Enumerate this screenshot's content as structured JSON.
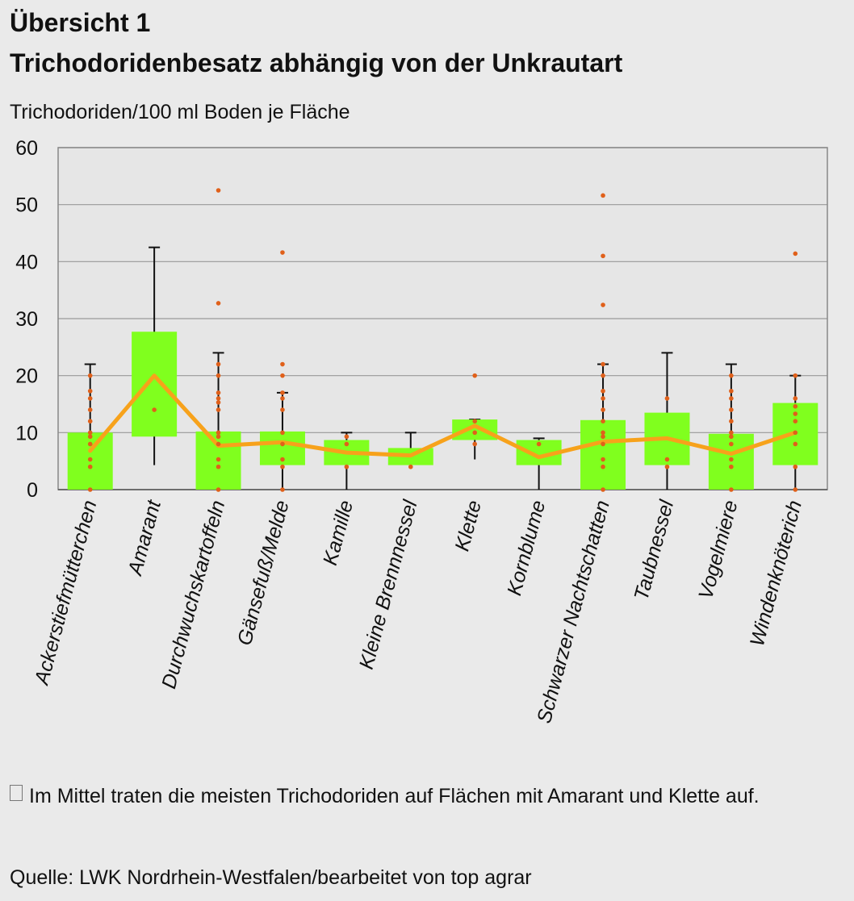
{
  "header": {
    "title_line1": "Übersicht 1",
    "title_line2": "Trichodoridenbesatz abhängig von der Unkrautart"
  },
  "chart_data": {
    "type": "boxplot",
    "ylabel": "Trichodoriden/100  ml Boden je Fläche",
    "ylim": [
      0,
      60
    ],
    "yticks": [
      0,
      10,
      20,
      30,
      40,
      50,
      60
    ],
    "grid": true,
    "colors": {
      "box": "#80ff1e",
      "mean_line": "#f7a21b",
      "points": "#e0601a",
      "whisker": "#111111",
      "grid": "#999999",
      "plot_bg": "#e6e6e6"
    },
    "categories": [
      "Ackerstiefmütterchen",
      "Amarant",
      "Durchwuchskartoffeln",
      "Gänsefuß/Melde",
      "Kamille",
      "Kleine Brennnessel",
      "Klette",
      "Kornblume",
      "Schwarzer Nachtschatten",
      "Taubnessel",
      "Vogelmiere",
      "Windenknöterich"
    ],
    "boxes": [
      {
        "whisker_low": 0,
        "q1": 0,
        "q3": 10,
        "whisker_high": 22
      },
      {
        "whisker_low": 4.3,
        "q1": 9.3,
        "q3": 27.7,
        "whisker_high": 42.5
      },
      {
        "whisker_low": 0,
        "q1": 0,
        "q3": 10.2,
        "whisker_high": 24
      },
      {
        "whisker_low": 0,
        "q1": 4.3,
        "q3": 10.2,
        "whisker_high": 17
      },
      {
        "whisker_low": 0,
        "q1": 4.3,
        "q3": 8.7,
        "whisker_high": 10
      },
      {
        "whisker_low": 4.3,
        "q1": 4.3,
        "q3": 7.3,
        "whisker_high": 10
      },
      {
        "whisker_low": 5.3,
        "q1": 8.7,
        "q3": 12.3,
        "whisker_high": 12.3
      },
      {
        "whisker_low": 0,
        "q1": 4.3,
        "q3": 8.7,
        "whisker_high": 9
      },
      {
        "whisker_low": 0,
        "q1": 0,
        "q3": 12.2,
        "whisker_high": 22
      },
      {
        "whisker_low": 0,
        "q1": 4.3,
        "q3": 13.5,
        "whisker_high": 24
      },
      {
        "whisker_low": 0,
        "q1": 0,
        "q3": 9.8,
        "whisker_high": 22
      },
      {
        "whisker_low": 0,
        "q1": 4.3,
        "q3": 15.2,
        "whisker_high": 20
      }
    ],
    "means": [
      6.8,
      20,
      7.7,
      8.3,
      6.5,
      6,
      11.2,
      5.7,
      8.4,
      9,
      6.3,
      10
    ],
    "points": [
      [
        0,
        4,
        5.3,
        8,
        9.3,
        10,
        12,
        14,
        16,
        17.3,
        20
      ],
      [
        14
      ],
      [
        0,
        4,
        5.3,
        8,
        9.3,
        10,
        14,
        15.3,
        16,
        17,
        20,
        22,
        32.7,
        52.5
      ],
      [
        0,
        4,
        5.3,
        8,
        10,
        14,
        16,
        17,
        20,
        22,
        41.6
      ],
      [
        4,
        8,
        9.3
      ],
      [
        4
      ],
      [
        8,
        10,
        12,
        20
      ],
      [
        8
      ],
      [
        0,
        4,
        5.3,
        8,
        9.3,
        10,
        12,
        14,
        16,
        17.3,
        20,
        22,
        32.4,
        41,
        51.6
      ],
      [
        4,
        5.3,
        16
      ],
      [
        0,
        4,
        5.3,
        8,
        9.3,
        10,
        12,
        14,
        16,
        17.3,
        20
      ],
      [
        0,
        4,
        8,
        10,
        12,
        13.3,
        14.6,
        16,
        20,
        41.4
      ]
    ]
  },
  "footer": {
    "note": "Im Mittel  traten die meisten Trichodoriden auf Flächen mit Amarant und Klette auf.",
    "source": "Quelle: LWK Nordrhein-Westfalen/bearbeitet von top  agrar"
  }
}
